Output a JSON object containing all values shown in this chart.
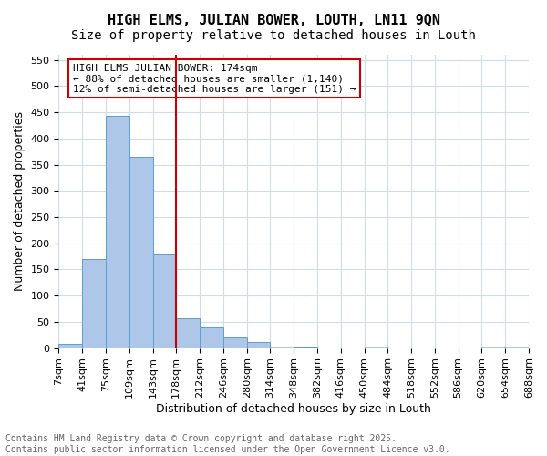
{
  "title": "HIGH ELMS, JULIAN BOWER, LOUTH, LN11 9QN",
  "subtitle": "Size of property relative to detached houses in Louth",
  "xlabel": "Distribution of detached houses by size in Louth",
  "ylabel": "Number of detached properties",
  "bar_values": [
    8,
    170,
    443,
    365,
    178,
    57,
    40,
    20,
    11,
    3,
    1,
    0,
    0,
    2,
    0,
    0,
    0,
    0,
    3,
    2
  ],
  "bin_labels": [
    "7sqm",
    "41sqm",
    "75sqm",
    "109sqm",
    "143sqm",
    "178sqm",
    "212sqm",
    "246sqm",
    "280sqm",
    "314sqm",
    "348sqm",
    "382sqm",
    "416sqm",
    "450sqm",
    "484sqm",
    "518sqm",
    "552sqm",
    "586sqm",
    "620sqm",
    "654sqm",
    "688sqm"
  ],
  "bar_color": "#aec6e8",
  "bar_edge_color": "#5a9fd4",
  "vline_x": 5,
  "vline_color": "#cc0000",
  "annotation_text": "HIGH ELMS JULIAN BOWER: 174sqm\n← 88% of detached houses are smaller (1,140)\n12% of semi-detached houses are larger (151) →",
  "annotation_box_color": "#cc0000",
  "ylim": [
    0,
    560
  ],
  "yticks": [
    0,
    50,
    100,
    150,
    200,
    250,
    300,
    350,
    400,
    450,
    500,
    550
  ],
  "footer_text": "Contains HM Land Registry data © Crown copyright and database right 2025.\nContains public sector information licensed under the Open Government Licence v3.0.",
  "footer_color": "#666666",
  "background_color": "#ffffff",
  "grid_color": "#ccddee",
  "title_fontsize": 11,
  "subtitle_fontsize": 10,
  "axis_label_fontsize": 9,
  "tick_fontsize": 8,
  "annotation_fontsize": 8,
  "footer_fontsize": 7
}
